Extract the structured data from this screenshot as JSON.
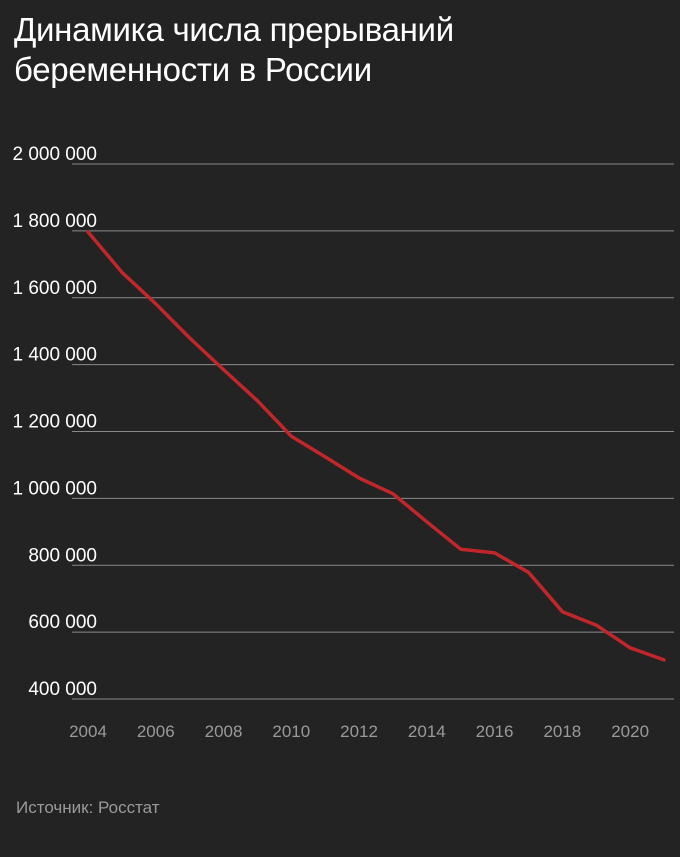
{
  "chart_data": {
    "type": "line",
    "title": "Динамика числа прерываний беременности в России",
    "source": "Источник: Росстат",
    "ylim": [
      400000,
      2000000
    ],
    "yticks": [
      2000000,
      1800000,
      1600000,
      1400000,
      1200000,
      1000000,
      800000,
      600000,
      400000
    ],
    "ytick_labels": [
      "2 000 000",
      "1 800 000",
      "1 600 000",
      "1 400 000",
      "1 200 000",
      "1 000 000",
      "800 000",
      "600 000",
      "400 000"
    ],
    "xlim": [
      2004,
      2021
    ],
    "xticks": [
      2004,
      2006,
      2008,
      2010,
      2012,
      2014,
      2016,
      2018,
      2020
    ],
    "xtick_labels": [
      "2004",
      "2006",
      "2008",
      "2010",
      "2012",
      "2014",
      "2016",
      "2018",
      "2020"
    ],
    "grid": true,
    "series": [
      {
        "color": "#c0262a",
        "x": [
          2004,
          2005,
          2006,
          2007,
          2008,
          2009,
          2010,
          2011,
          2012,
          2013,
          2014,
          2015,
          2016,
          2017,
          2018,
          2019,
          2020,
          2021
        ],
        "y": [
          1797000,
          1676000,
          1582000,
          1480000,
          1385000,
          1292000,
          1186000,
          1124000,
          1061000,
          1014000,
          930000,
          848000,
          837000,
          779000,
          661000,
          621000,
          553000,
          517000
        ]
      }
    ]
  }
}
